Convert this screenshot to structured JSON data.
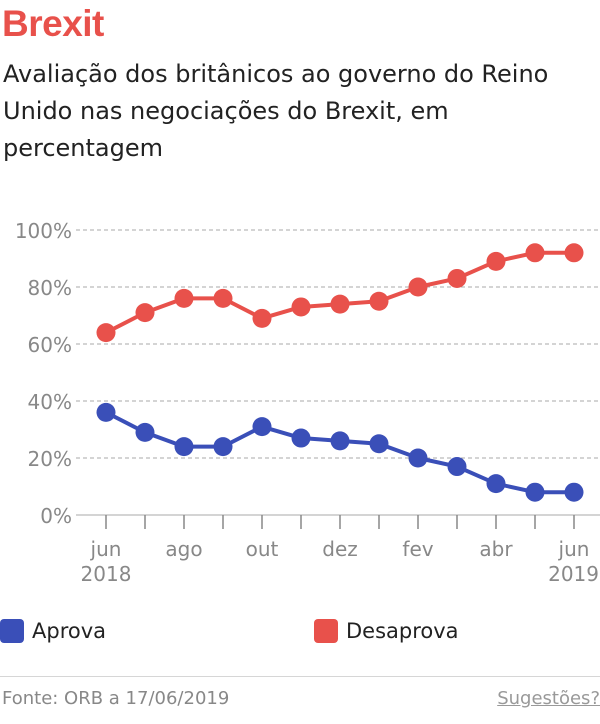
{
  "header": {
    "title": "Brexit",
    "subtitle": "Avaliação dos britânicos ao governo do Reino Unido nas negociações do Brexit, em percentagem"
  },
  "chart_data": {
    "type": "line",
    "title": "Brexit",
    "subtitle": "Avaliação dos britânicos ao governo do Reino Unido nas negociações do Brexit, em percentagem",
    "xlabel": "",
    "ylabel": "",
    "x": [
      "2018-06",
      "2018-07",
      "2018-08",
      "2018-09",
      "2018-10",
      "2018-11",
      "2018-12",
      "2019-01",
      "2019-02",
      "2019-03",
      "2019-04",
      "2019-05",
      "2019-06"
    ],
    "x_tick_labels": [
      {
        "line1": "jun",
        "line2": "2018"
      },
      {
        "line1": "",
        "line2": ""
      },
      {
        "line1": "ago",
        "line2": ""
      },
      {
        "line1": "",
        "line2": ""
      },
      {
        "line1": "out",
        "line2": ""
      },
      {
        "line1": "",
        "line2": ""
      },
      {
        "line1": "dez",
        "line2": ""
      },
      {
        "line1": "",
        "line2": ""
      },
      {
        "line1": "fev",
        "line2": ""
      },
      {
        "line1": "",
        "line2": ""
      },
      {
        "line1": "abr",
        "line2": ""
      },
      {
        "line1": "",
        "line2": ""
      },
      {
        "line1": "jun",
        "line2": "2019"
      }
    ],
    "y_ticks": [
      0,
      20,
      40,
      60,
      80,
      100
    ],
    "y_tick_labels": [
      "0%",
      "20%",
      "40%",
      "60%",
      "80%",
      "100%"
    ],
    "ylim": [
      0,
      100
    ],
    "grid": true,
    "legend_position": "bottom",
    "series": [
      {
        "name": "Aprova",
        "color": "#3a4fb8",
        "values": [
          36,
          29,
          24,
          24,
          31,
          27,
          26,
          25,
          20,
          17,
          11,
          8,
          8
        ]
      },
      {
        "name": "Desaprova",
        "color": "#e8514b",
        "values": [
          64,
          71,
          76,
          76,
          69,
          73,
          74,
          75,
          80,
          83,
          89,
          92,
          92
        ]
      }
    ]
  },
  "legend": {
    "aprova_label": "Aprova",
    "desaprova_label": "Desaprova",
    "aprova_color": "#3a4fb8",
    "desaprova_color": "#e8514b"
  },
  "footer": {
    "source": "Fonte: ORB a 17/06/2019",
    "suggestions": "Sugestões?"
  }
}
